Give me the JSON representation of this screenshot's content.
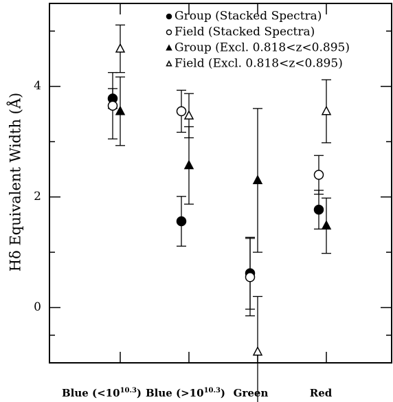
{
  "chart_data": {
    "type": "errorbar",
    "y_label": "Hδ Equivalent Width (Å)",
    "categories": [
      [
        "Blue (<10",
        "10.3",
        ")"
      ],
      [
        "Blue (>10",
        "10.3",
        ")"
      ],
      [
        "Green"
      ],
      [
        "Red"
      ]
    ],
    "ylim": [
      -1,
      5.5
    ],
    "yticks": [
      0,
      2,
      4
    ],
    "yticks_minor": [
      -0.5,
      1,
      3,
      5
    ],
    "legend": "top-right",
    "color": "#000000",
    "series": [
      {
        "name": "Group (Stacked Spectra)",
        "marker": "circle-filled",
        "values": [
          3.78,
          1.56,
          0.62,
          1.77
        ],
        "errors": [
          0.18,
          0.45,
          0.65,
          0.35
        ]
      },
      {
        "name": "Field (Stacked Spectra)",
        "marker": "circle-open",
        "values": [
          3.65,
          3.55,
          0.55,
          2.4
        ],
        "errors": [
          0.6,
          0.38,
          0.7,
          0.35
        ]
      },
      {
        "name": "Group (Excl. 0.818<z<0.895)",
        "marker": "triangle-filled",
        "values": [
          3.55,
          2.57,
          2.3,
          1.48
        ],
        "errors": [
          0.62,
          0.7,
          1.3,
          0.5
        ]
      },
      {
        "name": "Field (Excl. 0.818<z<0.895)",
        "marker": "triangle-open",
        "values": [
          4.68,
          3.47,
          -0.8,
          3.55
        ],
        "errors": [
          0.43,
          0.4,
          1.0,
          0.57
        ]
      }
    ]
  }
}
